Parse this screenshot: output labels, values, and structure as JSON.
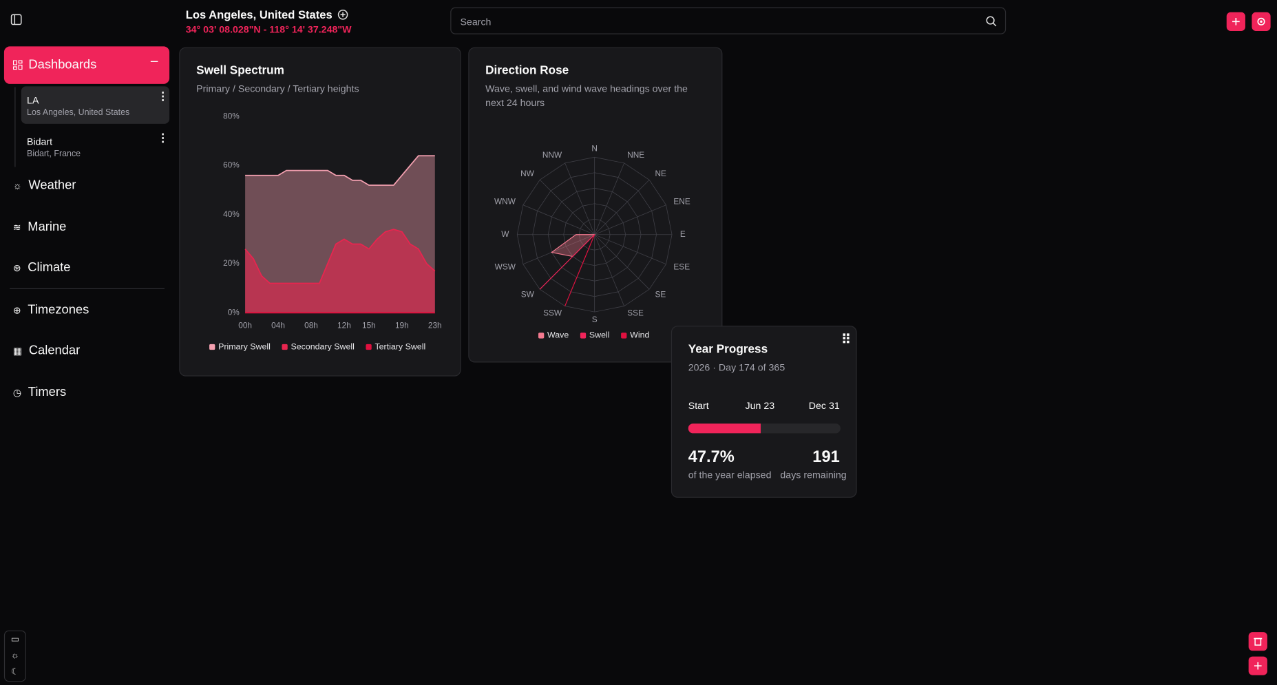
{
  "header": {
    "location": "Los Angeles, United States",
    "coords": "34° 03' 08.028\"N - 118° 14' 37.248\"W",
    "search_placeholder": "Search"
  },
  "sidebar": {
    "dashboards": "Dashboards",
    "items": [
      {
        "title": "LA",
        "subtitle": "Los Angeles, United States"
      },
      {
        "title": "Bidart",
        "subtitle": "Bidart, France"
      }
    ],
    "nav": [
      "Weather",
      "Marine",
      "Climate",
      "Timezones",
      "Calendar",
      "Timers"
    ]
  },
  "chart_data": [
    {
      "type": "area",
      "title": "Swell Spectrum",
      "subtitle": "Primary / Secondary / Tertiary heights",
      "categories": [
        "00h",
        null,
        null,
        null,
        "04h",
        null,
        null,
        null,
        "08h",
        null,
        null,
        null,
        "12h",
        null,
        null,
        "15h",
        null,
        null,
        null,
        "19h",
        null,
        null,
        null,
        "23h"
      ],
      "series": [
        {
          "name": "Primary Swell",
          "color": "#f4a0b0",
          "values": [
            56,
            56,
            56,
            56,
            56,
            58,
            58,
            58,
            58,
            58,
            58,
            56,
            56,
            54,
            54,
            52,
            52,
            52,
            52,
            56,
            60,
            64,
            64,
            64
          ]
        },
        {
          "name": "Secondary Swell",
          "color": "#e8254f",
          "values": [
            26,
            22,
            15,
            12,
            12,
            12,
            12,
            12,
            12,
            12,
            20,
            28,
            30,
            28,
            28,
            26,
            30,
            33,
            34,
            33,
            28,
            26,
            20,
            17
          ]
        },
        {
          "name": "Tertiary Swell",
          "color": "#e0103f",
          "values": [
            0,
            0,
            0,
            0,
            0,
            0,
            0,
            0,
            0,
            0,
            0,
            0,
            0,
            0,
            0,
            0,
            0,
            0,
            0,
            0,
            0,
            0,
            0,
            0
          ]
        }
      ],
      "ylim": [
        0,
        80
      ],
      "yticks": [
        {
          "value": 0,
          "label": "0%"
        },
        {
          "value": 20,
          "label": "20%"
        },
        {
          "value": 40,
          "label": "40%"
        },
        {
          "value": 60,
          "label": "60%"
        },
        {
          "value": 80,
          "label": "80%"
        }
      ]
    },
    {
      "type": "radar",
      "title": "Direction Rose",
      "subtitle": "Wave, swell, and wind wave headings over the next 24 hours",
      "categories": [
        "N",
        "NNE",
        "NE",
        "ENE",
        "E",
        "ESE",
        "SE",
        "SSE",
        "S",
        "SSW",
        "SW",
        "WSW",
        "W",
        "WNW",
        "NW",
        "NNW"
      ],
      "rlim": [
        0,
        100
      ],
      "series": [
        {
          "name": "Wave",
          "color": "#f47a90",
          "values": [
            0,
            0,
            0,
            0,
            0,
            0,
            0,
            0,
            0,
            0,
            40,
            60,
            24,
            0,
            0,
            0
          ]
        },
        {
          "name": "Swell",
          "color": "#f0245a",
          "values": [
            0,
            0,
            0,
            0,
            0,
            0,
            0,
            0,
            0,
            0,
            100,
            0,
            0,
            0,
            0,
            0
          ]
        },
        {
          "name": "Wind",
          "color": "#e0103f",
          "values": [
            0,
            0,
            0,
            0,
            0,
            0,
            0,
            0,
            0,
            100,
            0,
            0,
            0,
            0,
            0,
            0
          ]
        }
      ]
    }
  ],
  "year_progress": {
    "title": "Year Progress",
    "subtitle": "2026 · Day 174 of 365",
    "start": "Start",
    "today": "Jun 23",
    "end": "Dec 31",
    "xlim": [
      0,
      100
    ],
    "percent": 47.7,
    "percent_label": "47.7%",
    "percent_caption": "of the year elapsed",
    "days_remaining": 191,
    "days_caption": "days remaining"
  }
}
